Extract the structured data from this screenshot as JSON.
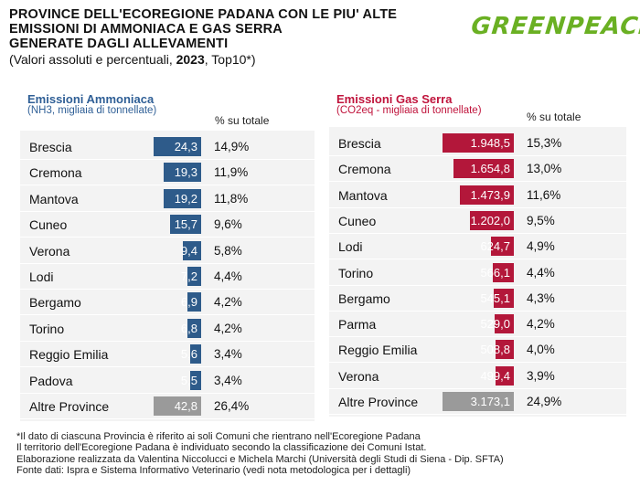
{
  "header": {
    "title_lines": [
      "PROVINCE DELL'ECOREGIONE PADANA CON LE PIU' ALTE",
      "EMISSIONI DI AMMONIACA E GAS SERRA",
      "GENERATE DAGLI ALLEVAMENTI"
    ],
    "subtitle_pre": "(Valori assoluti e percentuali, ",
    "subtitle_year": "2023",
    "subtitle_post": ", Top10*)"
  },
  "logo": {
    "text": "GREENPEACE"
  },
  "colors": {
    "ammonia_bar": "#2e5b8a",
    "ghg_bar": "#b3173a",
    "other_bar": "#9a9a9a",
    "ammonia_title": "#2f5f96",
    "ghg_title": "#c0143c",
    "logo": "#6ab023"
  },
  "chart_data": [
    {
      "type": "bar",
      "title": "Emissioni Ammoniaca",
      "unit": "(NH3, migliaia di tonnellate)",
      "pct_header": "% su totale",
      "categories": [
        "Brescia",
        "Cremona",
        "Mantova",
        "Cuneo",
        "Verona",
        "Lodi",
        "Bergamo",
        "Torino",
        "Reggio Emilia",
        "Padova",
        "Altre Province"
      ],
      "values": [
        24.3,
        19.3,
        19.2,
        15.7,
        9.4,
        7.2,
        6.9,
        6.8,
        5.6,
        5.5,
        42.8
      ],
      "value_labels": [
        "24,3",
        "19,3",
        "19,2",
        "15,7",
        "9,4",
        "7,2",
        "6,9",
        "6,8",
        "5,6",
        "5,5",
        "42,8"
      ],
      "pct_labels": [
        "14,9%",
        "11,9%",
        "11,8%",
        "9,6%",
        "5,8%",
        "4,4%",
        "4,2%",
        "4,2%",
        "3,4%",
        "3,4%",
        "26,4%"
      ]
    },
    {
      "type": "bar",
      "title": "Emissioni Gas Serra",
      "unit": "(CO2eq - migliaia di tonnellate)",
      "pct_header": "% su totale",
      "categories": [
        "Brescia",
        "Cremona",
        "Mantova",
        "Cuneo",
        "Lodi",
        "Torino",
        "Bergamo",
        "Parma",
        "Reggio Emilia",
        "Verona",
        "Altre Province"
      ],
      "values": [
        1948.5,
        1654.8,
        1473.9,
        1202.0,
        624.7,
        566.1,
        545.1,
        529.0,
        508.8,
        499.4,
        3173.1
      ],
      "value_labels": [
        "1.948,5",
        "1.654,8",
        "1.473,9",
        "1.202,0",
        "624,7",
        "566,1",
        "545,1",
        "529,0",
        "508,8",
        "499,4",
        "3.173,1"
      ],
      "pct_labels": [
        "15,3%",
        "13,0%",
        "11,6%",
        "9,5%",
        "4,9%",
        "4,4%",
        "4,3%",
        "4,2%",
        "4,0%",
        "3,9%",
        "24,9%"
      ]
    }
  ],
  "footnotes": [
    "*Il dato di ciascuna Provincia è riferito ai soli Comuni che rientrano nell'Ecoregione Padana",
    "Il territorio dell'Ecoregione Padana è individuato secondo la classificazione dei Comuni Istat.",
    "Elaborazione realizzata da Valentina Niccolucci e Michela Marchi (Università degli Studi di Siena - Dip. SFTA)",
    "Fonte dati: Ispra e Sistema Informativo Veterinario (vedi nota metodologica per i dettagli)"
  ]
}
